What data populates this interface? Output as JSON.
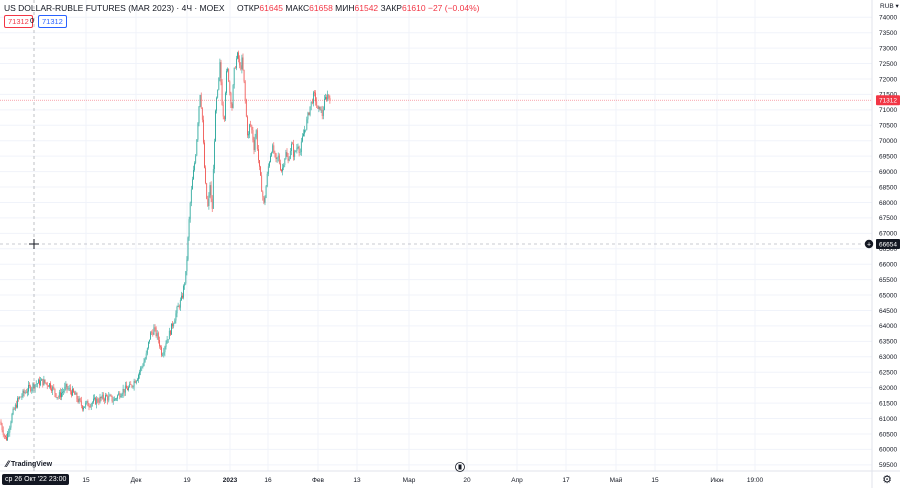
{
  "header": {
    "symbol": "US DOLLAR-RUBLE FUTURES (MAR 2023) · 4Ч · MOEX",
    "open_label": "ОТКР",
    "open_value": "61645",
    "high_label": "МАКС",
    "high_value": "61658",
    "low_label": "МИН",
    "low_value": "61542",
    "close_label": "ЗАКР",
    "close_value": "61610",
    "change_value": "−27 (−0.04%)"
  },
  "price_boxes": {
    "left": "71312",
    "zero": "0",
    "right": "71312"
  },
  "branding": {
    "logo_text": "TradingView"
  },
  "crosshair": {
    "time_label": "ср 26 Окт '22  23:00",
    "price_label": "66654"
  },
  "colors": {
    "up": "#26a69a",
    "down": "#ef5350",
    "last_price": "#f23645",
    "crosshair": "#131722"
  },
  "chart_data": {
    "type": "candlestick",
    "currency": "RUB",
    "y_axis_ticks": [
      59500,
      60000,
      60500,
      61000,
      61500,
      62000,
      62500,
      63000,
      63500,
      64000,
      64500,
      65000,
      65500,
      66000,
      66500,
      67000,
      67500,
      68000,
      68500,
      69000,
      69500,
      70000,
      70500,
      71000,
      71500,
      72000,
      72500,
      73000,
      73500,
      74000
    ],
    "ylim": [
      59300,
      74300
    ],
    "x_axis_labels": [
      "15",
      "Дек",
      "19",
      "2023",
      "16",
      "Фев",
      "13",
      "Мар",
      "20",
      "Апр",
      "17",
      "Май",
      "15",
      "Июн",
      "19:00"
    ],
    "last_price": 71312,
    "crosshair_price": 66654,
    "grid": true,
    "series_path": [
      [
        0,
        60900
      ],
      [
        6,
        60300
      ],
      [
        12,
        61100
      ],
      [
        18,
        61600
      ],
      [
        26,
        61900
      ],
      [
        34,
        62100
      ],
      [
        42,
        62200
      ],
      [
        50,
        62100
      ],
      [
        58,
        61700
      ],
      [
        66,
        62000
      ],
      [
        74,
        61800
      ],
      [
        82,
        61400
      ],
      [
        90,
        61500
      ],
      [
        98,
        61600
      ],
      [
        106,
        61700
      ],
      [
        114,
        61600
      ],
      [
        122,
        61900
      ],
      [
        130,
        62000
      ],
      [
        138,
        62400
      ],
      [
        142,
        62700
      ],
      [
        146,
        63000
      ],
      [
        150,
        63700
      ],
      [
        154,
        63900
      ],
      [
        158,
        63600
      ],
      [
        162,
        63100
      ],
      [
        166,
        63500
      ],
      [
        170,
        63800
      ],
      [
        174,
        64200
      ],
      [
        178,
        64600
      ],
      [
        182,
        64900
      ],
      [
        186,
        65700
      ],
      [
        188,
        66800
      ],
      [
        190,
        67900
      ],
      [
        192,
        68600
      ],
      [
        194,
        69100
      ],
      [
        196,
        69700
      ],
      [
        198,
        70700
      ],
      [
        200,
        71600
      ],
      [
        202,
        70900
      ],
      [
        204,
        69400
      ],
      [
        206,
        68300
      ],
      [
        208,
        67800
      ],
      [
        210,
        68600
      ],
      [
        212,
        67600
      ],
      [
        214,
        69800
      ],
      [
        216,
        71200
      ],
      [
        218,
        71600
      ],
      [
        220,
        72500
      ],
      [
        222,
        71300
      ],
      [
        224,
        70600
      ],
      [
        226,
        72100
      ],
      [
        228,
        72300
      ],
      [
        230,
        71500
      ],
      [
        232,
        71100
      ],
      [
        234,
        72200
      ],
      [
        236,
        72600
      ],
      [
        238,
        72800
      ],
      [
        240,
        72300
      ],
      [
        242,
        72600
      ],
      [
        244,
        71900
      ],
      [
        246,
        70900
      ],
      [
        248,
        70000
      ],
      [
        250,
        70600
      ],
      [
        252,
        70300
      ],
      [
        254,
        69800
      ],
      [
        256,
        70400
      ],
      [
        258,
        69500
      ],
      [
        260,
        68900
      ],
      [
        262,
        68400
      ],
      [
        264,
        67900
      ],
      [
        266,
        68500
      ],
      [
        268,
        69100
      ],
      [
        270,
        69500
      ],
      [
        272,
        69800
      ],
      [
        274,
        69600
      ],
      [
        276,
        69300
      ],
      [
        278,
        69500
      ],
      [
        280,
        69200
      ],
      [
        282,
        69000
      ],
      [
        284,
        69400
      ],
      [
        286,
        69600
      ],
      [
        288,
        69300
      ],
      [
        290,
        69700
      ],
      [
        292,
        69900
      ],
      [
        294,
        69500
      ],
      [
        296,
        69700
      ],
      [
        298,
        69900
      ],
      [
        300,
        69600
      ],
      [
        302,
        70000
      ],
      [
        304,
        70300
      ],
      [
        306,
        70500
      ],
      [
        308,
        70800
      ],
      [
        310,
        71100
      ],
      [
        312,
        71300
      ],
      [
        314,
        71500
      ],
      [
        316,
        71300
      ],
      [
        318,
        70900
      ],
      [
        320,
        71100
      ],
      [
        322,
        70800
      ],
      [
        324,
        71200
      ],
      [
        326,
        71400
      ],
      [
        328,
        71500
      ],
      [
        330,
        71312
      ]
    ]
  }
}
